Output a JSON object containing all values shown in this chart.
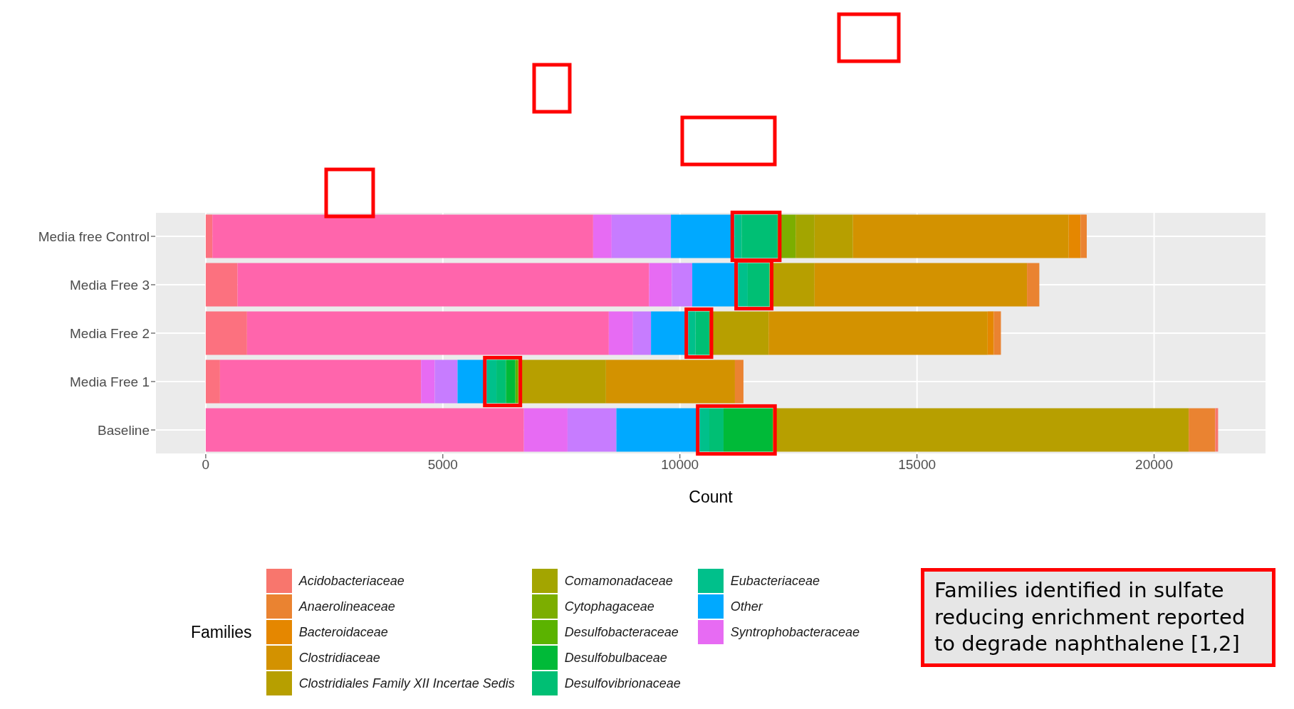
{
  "chart_data": {
    "type": "bar",
    "orientation": "horizontal",
    "stacked": true,
    "categories": [
      "Media free Control",
      "Media Free 3",
      "Media Free 2",
      "Media Free 1",
      "Baseline"
    ],
    "series": [
      {
        "color": "#fc717f",
        "values": [
          140,
          670,
          870,
          300,
          0
        ]
      },
      {
        "color": "#ff65ac",
        "values": [
          8030,
          8680,
          7630,
          4240,
          6710
        ]
      },
      {
        "name": "Syntrophobacteraceae",
        "color": "#e76bf3",
        "values": [
          390,
          480,
          510,
          290,
          920
        ]
      },
      {
        "color": "#c77cff",
        "values": [
          1250,
          430,
          380,
          480,
          1030
        ]
      },
      {
        "name": "Other",
        "color": "#00a9ff",
        "values": [
          1340,
          970,
          790,
          620,
          1760
        ]
      },
      {
        "name": "Eubacteriaceae",
        "color": "#00c08b",
        "values": [
          150,
          200,
          150,
          200,
          200
        ]
      },
      {
        "name": "Desulfovibrionaceae",
        "color": "#00bf74",
        "values": [
          760,
          460,
          290,
          200,
          300
        ]
      },
      {
        "name": "Desulfobulbaceae",
        "color": "#00ba38",
        "values": [
          0,
          0,
          0,
          200,
          1040
        ]
      },
      {
        "name": "Desulfobacteraceae",
        "color": "#5bb300",
        "values": [
          0,
          0,
          0,
          60,
          0
        ]
      },
      {
        "name": "Cytophagaceae",
        "color": "#7cae00",
        "values": [
          380,
          0,
          0,
          0,
          0
        ]
      },
      {
        "name": "Comamonadaceae",
        "color": "#a3a500",
        "values": [
          400,
          0,
          0,
          0,
          0
        ]
      },
      {
        "name": "Clostridiales Family XII Incertae Sedis",
        "color": "#b79f00",
        "values": [
          810,
          950,
          1250,
          1850,
          8770
        ]
      },
      {
        "name": "Clostridiaceae",
        "color": "#d39200",
        "values": [
          4550,
          4480,
          4620,
          2720,
          0
        ]
      },
      {
        "name": "Bacteroidaceae",
        "color": "#e58700",
        "values": [
          250,
          0,
          130,
          0,
          0
        ]
      },
      {
        "name": "Anaerolineaceae",
        "color": "#ea8331",
        "values": [
          130,
          260,
          150,
          180,
          560
        ]
      },
      {
        "name": "Acidobacteriaceae",
        "color": "#f8766d",
        "values": [
          0,
          0,
          0,
          0,
          60
        ]
      }
    ],
    "xlim": [
      -1065,
      22365
    ],
    "xticks": [
      0,
      5000,
      10000,
      15000,
      20000
    ],
    "xlabel": "Count",
    "legend_title": "Families",
    "legend": "bottom",
    "grid": true,
    "annotations": [
      "Families identified in sulfate reducing enrichment reported to degrade naphthalene [1,2]"
    ]
  }
}
